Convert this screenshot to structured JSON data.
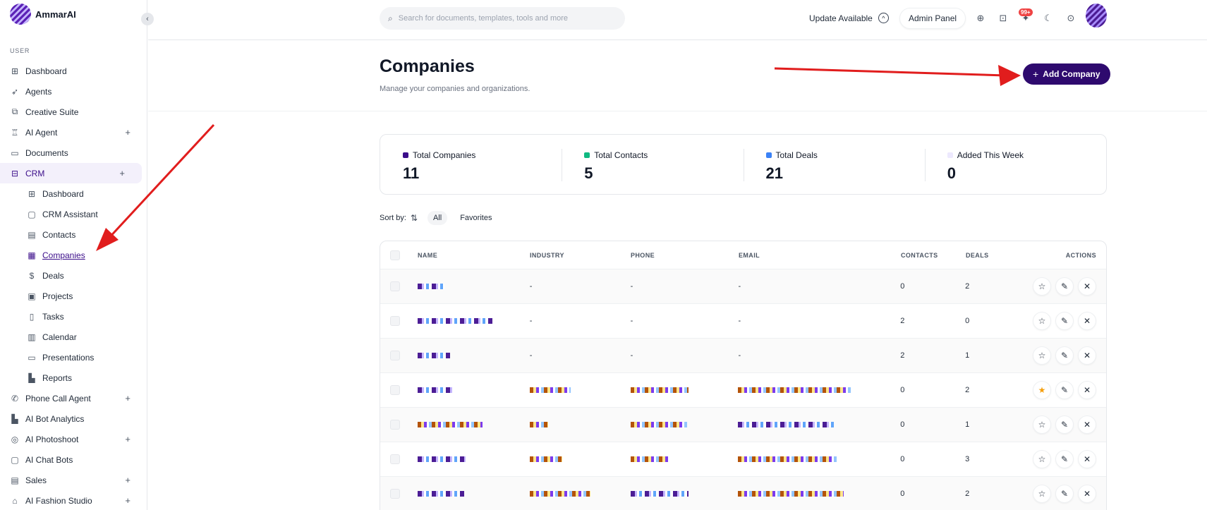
{
  "brand": {
    "name": "AmmarAI"
  },
  "sidebar": {
    "section_label": "USER",
    "items": [
      {
        "label": "Dashboard",
        "icon": "grid-icon"
      },
      {
        "label": "Agents",
        "icon": "rocket-icon"
      },
      {
        "label": "Creative Suite",
        "icon": "crop-icon"
      },
      {
        "label": "AI Agent",
        "icon": "robot-icon",
        "expand": "+"
      },
      {
        "label": "Documents",
        "icon": "archive-icon"
      },
      {
        "label": "CRM",
        "icon": "inbox-icon",
        "expand": "+"
      }
    ],
    "crm_sub": [
      {
        "label": "Dashboard",
        "icon": "grid-icon"
      },
      {
        "label": "CRM Assistant",
        "icon": "chat-icon"
      },
      {
        "label": "Contacts",
        "icon": "contacts-icon"
      },
      {
        "label": "Companies",
        "icon": "building-icon"
      },
      {
        "label": "Deals",
        "icon": "dollar-icon"
      },
      {
        "label": "Projects",
        "icon": "briefcase-icon"
      },
      {
        "label": "Tasks",
        "icon": "clipboard-icon"
      },
      {
        "label": "Calendar",
        "icon": "calendar-icon"
      },
      {
        "label": "Presentations",
        "icon": "presentation-icon"
      },
      {
        "label": "Reports",
        "icon": "bar-chart-icon"
      }
    ],
    "after": [
      {
        "label": "Phone Call Agent",
        "icon": "phone-icon",
        "expand": "+"
      },
      {
        "label": "AI Bot Analytics",
        "icon": "bar-chart-icon"
      },
      {
        "label": "AI Photoshoot",
        "icon": "camera-icon",
        "expand": "+"
      },
      {
        "label": "AI Chat Bots",
        "icon": "chat-icon"
      },
      {
        "label": "Sales",
        "icon": "receipt-icon",
        "expand": "+"
      },
      {
        "label": "AI Fashion Studio",
        "icon": "shirt-icon",
        "expand": "+"
      }
    ]
  },
  "topbar": {
    "search_placeholder": "Search for documents, templates, tools and more",
    "update_label": "Update Available",
    "admin_label": "Admin Panel",
    "notif_badge": "99+"
  },
  "page": {
    "title": "Companies",
    "subtitle": "Manage your companies and organizations.",
    "add_label": "Add Company"
  },
  "stats": [
    {
      "label": "Total Companies",
      "value": "11",
      "color": "#3b0d8a"
    },
    {
      "label": "Total Contacts",
      "value": "5",
      "color": "#10b981"
    },
    {
      "label": "Total Deals",
      "value": "21",
      "color": "#3b82f6"
    },
    {
      "label": "Added This Week",
      "value": "0",
      "color": "#ede9fe"
    }
  ],
  "sort": {
    "label": "Sort by:",
    "chips": [
      "All",
      "Favorites"
    ]
  },
  "table": {
    "columns": [
      "NAME",
      "INDUSTRY",
      "PHONE",
      "EMAIL",
      "CONTACTS",
      "DEALS",
      "ACTIONS"
    ],
    "rows": [
      {
        "industry": "-",
        "phone": "-",
        "email": "-",
        "contacts": "0",
        "deals": "2",
        "favorite": false
      },
      {
        "industry": "-",
        "phone": "-",
        "email": "-",
        "contacts": "2",
        "deals": "0",
        "favorite": false
      },
      {
        "industry": "-",
        "phone": "-",
        "email": "-",
        "contacts": "2",
        "deals": "1",
        "favorite": false
      },
      {
        "industry": "",
        "phone": "",
        "email": "",
        "contacts": "0",
        "deals": "2",
        "favorite": true
      },
      {
        "industry": "",
        "phone": "",
        "email": "",
        "contacts": "0",
        "deals": "1",
        "favorite": false
      },
      {
        "industry": "",
        "phone": "",
        "email": "",
        "contacts": "0",
        "deals": "3",
        "favorite": false
      },
      {
        "industry": "",
        "phone": "",
        "email": "",
        "contacts": "0",
        "deals": "2",
        "favorite": false
      }
    ]
  }
}
